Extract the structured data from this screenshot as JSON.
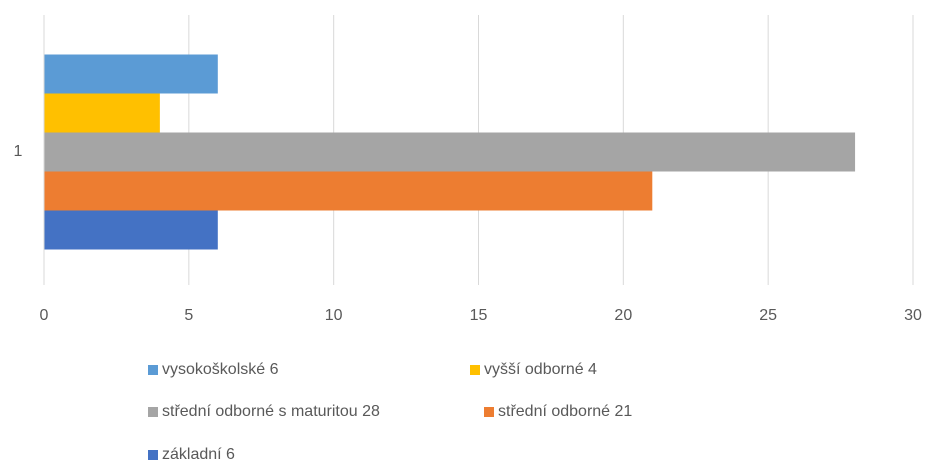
{
  "chart_data": {
    "type": "bar",
    "orientation": "horizontal",
    "categories": [
      "1"
    ],
    "series": [
      {
        "name": "vysokoškolské 6",
        "color": "#5b9bd5",
        "values": [
          6
        ]
      },
      {
        "name": "vyšší odborné 4",
        "color": "#ffc000",
        "values": [
          4
        ]
      },
      {
        "name": "střední odborné s maturitou 28",
        "color": "#a5a5a5",
        "values": [
          28
        ]
      },
      {
        "name": "střední odborné 21",
        "color": "#ed7d31",
        "values": [
          21
        ]
      },
      {
        "name": "základní 6",
        "color": "#4472c4",
        "values": [
          6
        ]
      }
    ],
    "xlim": [
      0,
      30
    ],
    "xticks": [
      0,
      5,
      10,
      15,
      20,
      25,
      30
    ],
    "grid": true,
    "legend": "bottom"
  }
}
